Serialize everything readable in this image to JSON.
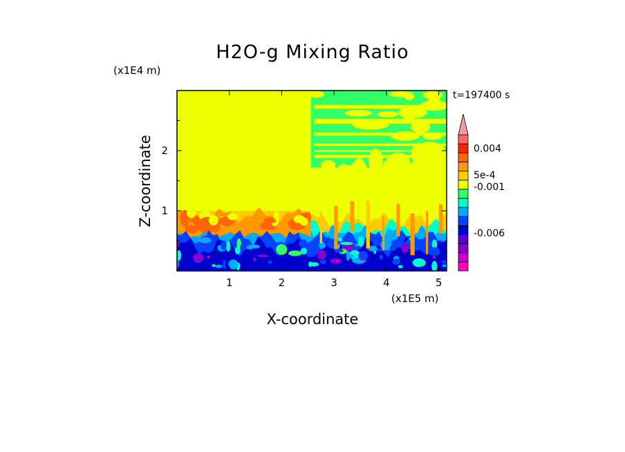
{
  "chart_data": {
    "type": "heatmap",
    "title": "H2O-g Mixing Ratio",
    "xlabel": "X-coordinate",
    "ylabel": "Z-coordinate",
    "x_scale_label": "(x1E5 m)",
    "y_scale_label": "(x1E4 m)",
    "time_label": "t=197400 s",
    "xlim": [
      0,
      5.15
    ],
    "ylim": [
      0,
      3.0
    ],
    "x_ticks": [
      {
        "value": 1,
        "label": "1"
      },
      {
        "value": 2,
        "label": "2"
      },
      {
        "value": 3,
        "label": "3"
      },
      {
        "value": 4,
        "label": "4"
      },
      {
        "value": 5,
        "label": "5"
      }
    ],
    "y_ticks": [
      {
        "value": 1,
        "label": "1"
      },
      {
        "value": 2,
        "label": "2"
      }
    ],
    "colorbar": {
      "levels": [
        {
          "color": "#ff00bb"
        },
        {
          "color": "#cc00cc"
        },
        {
          "color": "#8800cc"
        },
        {
          "color": "#5500dd"
        },
        {
          "color": "#0000cc"
        },
        {
          "color": "#0044ff"
        },
        {
          "color": "#00aaff"
        },
        {
          "color": "#00ffcc"
        },
        {
          "color": "#33ff66"
        },
        {
          "color": "#eeff00"
        },
        {
          "color": "#ffcc00"
        },
        {
          "color": "#ff9900"
        },
        {
          "color": "#ff6600"
        },
        {
          "color": "#ff2200"
        },
        {
          "color": "#ff6666"
        },
        {
          "color": "#ff9999"
        }
      ],
      "labels": [
        {
          "level": 13.5,
          "text": "0.004"
        },
        {
          "level": 10.6,
          "text": "5e-4"
        },
        {
          "level": 9.3,
          "text": "-0.001"
        },
        {
          "level": 4.2,
          "text": "-0.006"
        }
      ]
    },
    "colors": {
      "background_field": "#eeff00",
      "pale_green": "#33ff66",
      "orange": "#ff9900",
      "dark_orange": "#ff6600",
      "light_orange": "#ffcc00",
      "blue": "#0000cc",
      "mid_blue": "#0044ff",
      "light_blue": "#00aaff",
      "cyan": "#00ffcc",
      "purple": "#8800cc",
      "magenta": "#cc00cc"
    }
  }
}
